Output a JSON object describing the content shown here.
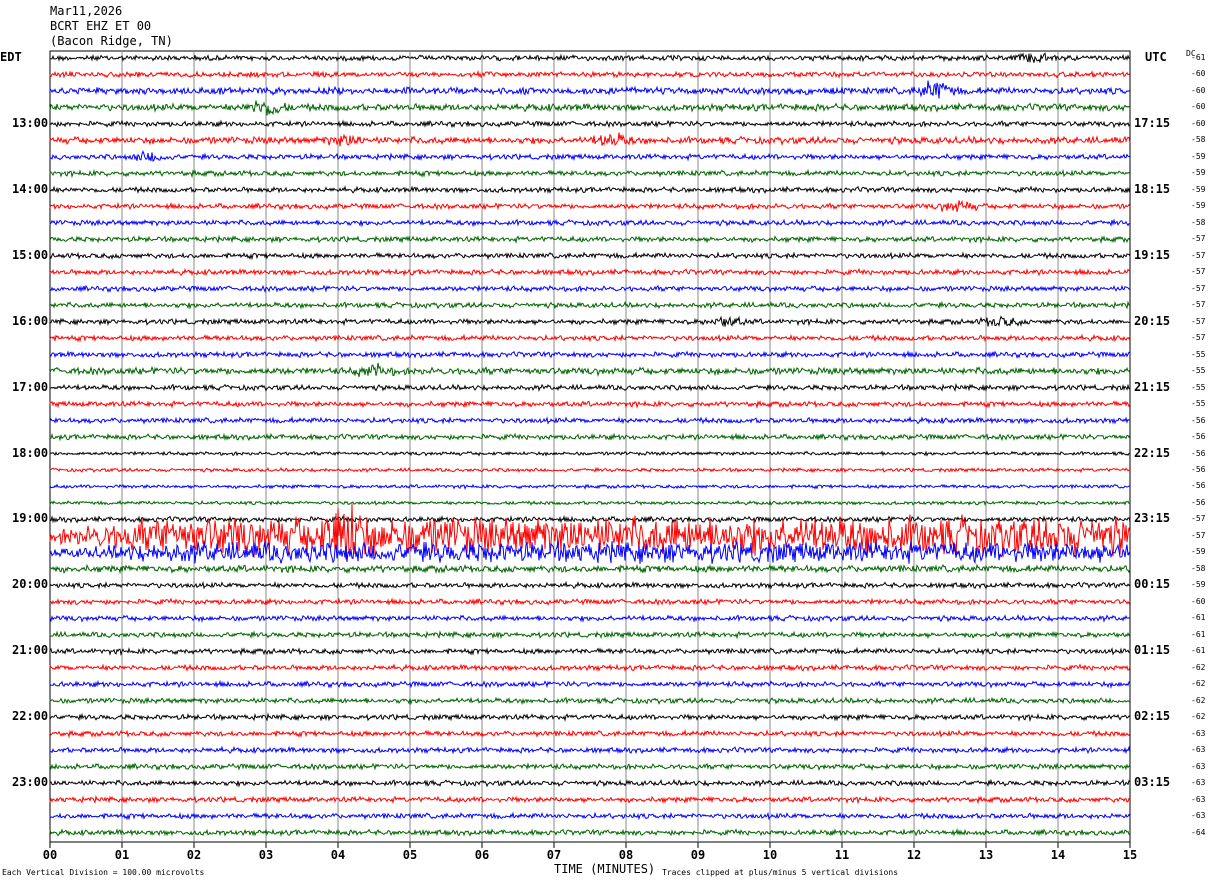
{
  "header": {
    "date": "Mar11,2026",
    "station": "BCRT EHZ ET 00",
    "location": "(Bacon Ridge, TN)"
  },
  "left_tz": "EDT",
  "right_tz": "UTC",
  "dc_label": "DC",
  "footer": {
    "scale_note": "Each Vertical Division =  100.00 microvolts",
    "xlabel": "TIME (MINUTES)",
    "clip_note": "Traces clipped at plus/minus 5 vertical divisions"
  },
  "colors": {
    "trace_cycle": [
      "#000000",
      "#ff0000",
      "#0000ff",
      "#006400"
    ],
    "grid": "#888888"
  },
  "chart_data": {
    "type": "line",
    "title": "BCRT EHZ ET 00",
    "xlabel": "TIME (MINUTES)",
    "xlim": [
      0,
      15
    ],
    "x_ticks": [
      "00",
      "01",
      "02",
      "03",
      "04",
      "05",
      "06",
      "07",
      "08",
      "09",
      "10",
      "11",
      "12",
      "13",
      "14",
      "15"
    ],
    "rows_per_hour": 4,
    "row_count": 48,
    "left_hour_labels": [
      {
        "row": 4,
        "text": "13:00"
      },
      {
        "row": 8,
        "text": "14:00"
      },
      {
        "row": 12,
        "text": "15:00"
      },
      {
        "row": 16,
        "text": "16:00"
      },
      {
        "row": 20,
        "text": "17:00"
      },
      {
        "row": 24,
        "text": "18:00"
      },
      {
        "row": 28,
        "text": "19:00"
      },
      {
        "row": 32,
        "text": "20:00"
      },
      {
        "row": 36,
        "text": "21:00"
      },
      {
        "row": 40,
        "text": "22:00"
      },
      {
        "row": 44,
        "text": "23:00"
      }
    ],
    "right_hour_labels": [
      {
        "row": 4,
        "text": "17:15"
      },
      {
        "row": 8,
        "text": "18:15"
      },
      {
        "row": 12,
        "text": "19:15"
      },
      {
        "row": 16,
        "text": "20:15"
      },
      {
        "row": 20,
        "text": "21:15"
      },
      {
        "row": 24,
        "text": "22:15"
      },
      {
        "row": 28,
        "text": "23:15"
      },
      {
        "row": 32,
        "text": "00:15"
      },
      {
        "row": 36,
        "text": "01:15"
      },
      {
        "row": 40,
        "text": "02:15"
      },
      {
        "row": 44,
        "text": "03:15"
      }
    ],
    "dc_offsets": [
      "-61",
      "-60",
      "-60",
      "-60",
      "-60",
      "-58",
      "-59",
      "-59",
      "-59",
      "-59",
      "-58",
      "-57",
      "-57",
      "-57",
      "-57",
      "-57",
      "-57",
      "-57",
      "-55",
      "-55",
      "-55",
      "-55",
      "-56",
      "-56",
      "-56",
      "-56",
      "-56",
      "-56",
      "-57",
      "-57",
      "-59",
      "-58",
      "-59",
      "-60",
      "-61",
      "-61",
      "-61",
      "-62",
      "-62",
      "-62",
      "-62",
      "-63",
      "-63",
      "-63",
      "-63",
      "-63",
      "-63",
      "-64"
    ],
    "amplitudes": [
      3,
      3,
      4,
      4,
      3,
      4,
      3,
      3,
      3,
      3,
      3,
      3,
      3,
      3,
      3,
      3,
      3,
      3,
      3,
      4,
      3,
      3,
      3,
      3,
      2,
      2,
      2,
      2,
      3,
      22,
      12,
      4,
      3,
      3,
      3,
      3,
      3,
      3,
      3,
      3,
      3,
      3,
      3,
      3,
      3,
      3,
      3,
      3
    ],
    "events": [
      {
        "row": 0,
        "minute": 13.7,
        "amplitude": 5
      },
      {
        "row": 2,
        "minute": 12.3,
        "amplitude": 10
      },
      {
        "row": 3,
        "minute": 3.0,
        "amplitude": 9
      },
      {
        "row": 5,
        "minute": 7.8,
        "amplitude": 7
      },
      {
        "row": 5,
        "minute": 4.1,
        "amplitude": 5
      },
      {
        "row": 6,
        "minute": 1.4,
        "amplitude": 5
      },
      {
        "row": 9,
        "minute": 12.6,
        "amplitude": 6
      },
      {
        "row": 16,
        "minute": 13.2,
        "amplitude": 5
      },
      {
        "row": 16,
        "minute": 9.4,
        "amplitude": 5
      },
      {
        "row": 19,
        "minute": 4.5,
        "amplitude": 6
      },
      {
        "row": 29,
        "minute": 4.1,
        "amplitude": 30
      }
    ]
  }
}
